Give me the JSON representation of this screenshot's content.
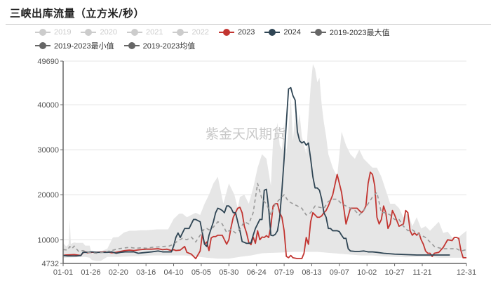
{
  "title": "三峡出库流量（立方米/秒）",
  "watermark": "紫金天风期货",
  "legend": [
    {
      "label": "2019",
      "color": "#cccccc",
      "muted": true
    },
    {
      "label": "2020",
      "color": "#cccccc",
      "muted": true
    },
    {
      "label": "2021",
      "color": "#cccccc",
      "muted": true
    },
    {
      "label": "2022",
      "color": "#cccccc",
      "muted": true
    },
    {
      "label": "2023",
      "color": "#c23531",
      "muted": false
    },
    {
      "label": "2024",
      "color": "#2f4554",
      "muted": false
    },
    {
      "label": "2019-2023最大值",
      "color": "#666666",
      "muted": false
    },
    {
      "label": "2019-2023最小值",
      "color": "#666666",
      "muted": false
    },
    {
      "label": "2019-2023均值",
      "color": "#666666",
      "muted": false
    }
  ],
  "chart_data": {
    "type": "line",
    "title": "三峡出库流量（立方米/秒）",
    "xlabel": "",
    "ylabel": "",
    "ylim": [
      4732,
      49690
    ],
    "y_ticks": [
      4732,
      10000,
      20000,
      30000,
      40000,
      49690
    ],
    "x_ticks": [
      "01-01",
      "01-26",
      "02-20",
      "03-16",
      "04-10",
      "05-05",
      "05-30",
      "06-24",
      "07-19",
      "08-13",
      "09-07",
      "10-02",
      "10-27",
      "11-21",
      "12-31"
    ],
    "x_tick_days": [
      0,
      25,
      50,
      75,
      100,
      125,
      150,
      175,
      200,
      225,
      250,
      275,
      300,
      325,
      365
    ],
    "grid": true,
    "legend_position": "top",
    "series": [
      {
        "name": "2019-2023最大值",
        "style": "band-upper",
        "color": "#e6e6e6",
        "x": [
          0,
          3,
          5,
          6,
          7,
          8,
          10,
          12,
          18,
          20,
          24,
          26,
          30,
          33,
          36,
          40,
          45,
          50,
          55,
          60,
          65,
          70,
          75,
          80,
          85,
          90,
          95,
          100,
          105,
          108,
          112,
          116,
          120,
          124,
          128,
          132,
          136,
          140,
          145,
          150,
          155,
          158,
          160,
          164,
          168,
          172,
          176,
          180,
          184,
          188,
          190,
          192,
          194,
          196,
          198,
          200,
          202,
          204,
          206,
          208,
          210,
          212,
          214,
          216,
          218,
          220,
          222,
          224,
          226,
          228,
          230,
          232,
          234,
          236,
          238,
          240,
          244,
          248,
          252,
          256,
          260,
          264,
          268,
          272,
          276,
          280,
          284,
          288,
          292,
          296,
          300,
          304,
          308,
          312,
          316,
          320,
          324,
          328,
          332,
          336,
          340,
          344,
          348,
          352,
          356,
          360,
          365
        ],
        "values": [
          9200,
          8500,
          9000,
          14500,
          9000,
          9200,
          9400,
          9300,
          9300,
          8700,
          8700,
          6800,
          7200,
          7000,
          7600,
          8000,
          10500,
          10600,
          11600,
          12000,
          12000,
          12100,
          12100,
          12200,
          12300,
          12300,
          12300,
          14600,
          15800,
          15800,
          15000,
          15500,
          16000,
          15500,
          18000,
          20000,
          22500,
          24000,
          18000,
          22500,
          20000,
          17000,
          19500,
          20000,
          18000,
          21500,
          26000,
          29000,
          28000,
          22000,
          32000,
          33000,
          36000,
          31000,
          30000,
          36000,
          29000,
          35000,
          42000,
          32000,
          38000,
          35000,
          38000,
          33000,
          31000,
          29000,
          37000,
          44000,
          49000,
          48000,
          45000,
          46000,
          40000,
          36000,
          33000,
          29000,
          26000,
          24000,
          34000,
          31000,
          29000,
          28000,
          30000,
          28000,
          27000,
          26000,
          26000,
          24000,
          21000,
          18000,
          18000,
          17000,
          15000,
          16000,
          13000,
          15000,
          12500,
          13000,
          12000,
          13000,
          14000,
          11500,
          11800,
          10500,
          10000,
          11000,
          12000
        ]
      },
      {
        "name": "2019-2023最小值",
        "style": "band-lower",
        "color": "#ffffff",
        "x": [
          0,
          10,
          20,
          24,
          26,
          30,
          34,
          40,
          50,
          60,
          70,
          80,
          90,
          100,
          110,
          120,
          130,
          140,
          150,
          160,
          170,
          180,
          190,
          200,
          210,
          220,
          230,
          240,
          250,
          260,
          270,
          280,
          290,
          300,
          310,
          320,
          330,
          340,
          350,
          360,
          365
        ],
        "values": [
          6000,
          6100,
          6200,
          6000,
          5500,
          5300,
          5300,
          6200,
          6200,
          6300,
          6400,
          6500,
          6500,
          6500,
          6500,
          6300,
          6000,
          5800,
          5800,
          6200,
          6500,
          7000,
          7100,
          7200,
          7300,
          7300,
          7300,
          7100,
          6900,
          6700,
          6500,
          6500,
          6300,
          6200,
          6100,
          6200,
          6200,
          6000,
          6000,
          6000,
          6200
        ]
      },
      {
        "name": "2023",
        "color": "#c23531",
        "x": [
          0,
          2,
          10,
          16,
          18,
          20,
          22,
          26,
          30,
          36,
          40,
          44,
          48,
          52,
          56,
          60,
          64,
          70,
          75,
          80,
          86,
          90,
          94,
          98,
          100,
          102,
          106,
          110,
          112,
          116,
          120,
          124,
          126,
          128,
          130,
          132,
          134,
          136,
          138,
          140,
          144,
          148,
          150,
          152,
          154,
          156,
          158,
          160,
          162,
          164,
          166,
          168,
          170,
          172,
          174,
          176,
          178,
          180,
          182,
          184,
          186,
          188,
          190,
          192,
          194,
          196,
          198,
          200,
          202,
          204,
          206,
          208,
          212,
          216,
          218,
          220,
          222,
          224,
          226,
          228,
          230,
          232,
          234,
          236,
          238,
          240,
          244,
          248,
          252,
          256,
          260,
          264,
          266,
          268,
          270,
          272,
          274,
          276,
          278,
          280,
          282,
          284,
          286,
          288,
          290,
          292,
          294,
          296,
          298,
          300,
          304,
          308,
          310,
          312,
          314,
          316,
          318,
          320,
          322,
          324,
          326,
          328,
          330,
          332,
          334,
          336,
          340,
          344,
          348,
          352,
          354,
          356,
          358,
          360,
          362,
          365
        ],
        "values": [
          6500,
          6600,
          6700,
          6500,
          7100,
          7300,
          7100,
          7200,
          7200,
          7300,
          7300,
          7100,
          7200,
          7400,
          7600,
          7700,
          7600,
          7800,
          7900,
          7900,
          8000,
          7800,
          7900,
          7600,
          7800,
          7600,
          7700,
          8500,
          7200,
          6800,
          5800,
          7500,
          11200,
          9000,
          9500,
          7600,
          10400,
          10700,
          10700,
          11000,
          11000,
          9000,
          10000,
          12800,
          15000,
          16000,
          17000,
          17200,
          16000,
          13000,
          11500,
          9400,
          8900,
          10600,
          9200,
          12000,
          10000,
          10600,
          10500,
          10900,
          10500,
          13000,
          17500,
          18000,
          18000,
          16000,
          15000,
          12000,
          6300,
          6000,
          6500,
          6000,
          5800,
          5800,
          7000,
          10500,
          9000,
          14000,
          16000,
          15500,
          15000,
          15000,
          15300,
          16000,
          16500,
          17500,
          20000,
          24500,
          20500,
          13500,
          17000,
          17000,
          17000,
          16500,
          16000,
          16500,
          17500,
          22500,
          25000,
          24500,
          22000,
          15000,
          13500,
          14500,
          17500,
          16000,
          12500,
          13500,
          16500,
          15500,
          13000,
          13500,
          16500,
          16000,
          12000,
          11000,
          11500,
          11000,
          11500,
          10000,
          9000,
          7500,
          7000,
          7000,
          6300,
          7000,
          7200,
          8300,
          10000,
          9800,
          10500,
          10500,
          10300,
          7600,
          6000,
          6000
        ]
      },
      {
        "name": "2024",
        "color": "#2f4554",
        "x": [
          0,
          4,
          12,
          16,
          18,
          22,
          26,
          30,
          36,
          40,
          44,
          48,
          52,
          56,
          60,
          64,
          68,
          72,
          76,
          80,
          86,
          90,
          94,
          98,
          100,
          102,
          104,
          106,
          110,
          114,
          116,
          118,
          120,
          124,
          128,
          130,
          132,
          134,
          136,
          138,
          140,
          142,
          144,
          146,
          148,
          150,
          152,
          154,
          156,
          158,
          160,
          162,
          164,
          166,
          168,
          170,
          172,
          174,
          176,
          178,
          180,
          182,
          184,
          186,
          188,
          190,
          192,
          194,
          196,
          198,
          200,
          202,
          204,
          206,
          208,
          210,
          212,
          214,
          216,
          218,
          220,
          222,
          224,
          226,
          228,
          230,
          232,
          234,
          236,
          238,
          240,
          242,
          244,
          246,
          248,
          250,
          252,
          254,
          256,
          258,
          260,
          264,
          268,
          272,
          276,
          280,
          284,
          290,
          300,
          310,
          320,
          330,
          340,
          350
        ],
        "values": [
          6500,
          6400,
          6400,
          6500,
          7200,
          7200,
          7300,
          7200,
          7200,
          7200,
          7300,
          7000,
          7200,
          7300,
          7300,
          7300,
          7000,
          7100,
          7200,
          7300,
          7500,
          7300,
          7300,
          7300,
          8600,
          10500,
          11500,
          10500,
          12500,
          12500,
          13500,
          14500,
          14500,
          14000,
          9000,
          8500,
          11000,
          12500,
          14000,
          16000,
          17000,
          16800,
          16500,
          16000,
          17500,
          17500,
          17000,
          16000,
          16000,
          14000,
          12000,
          9600,
          9400,
          9200,
          9200,
          9300,
          11000,
          12500,
          13500,
          14500,
          14500,
          21000,
          21200,
          17000,
          11000,
          10900,
          11200,
          12000,
          15000,
          21000,
          28000,
          36000,
          43500,
          43800,
          42000,
          41000,
          34000,
          32000,
          31500,
          31800,
          31000,
          31500,
          28000,
          24000,
          21500,
          21500,
          21000,
          19000,
          16000,
          15000,
          12500,
          12500,
          12000,
          12000,
          12000,
          11800,
          11000,
          10300,
          10300,
          8000,
          7500,
          7400,
          7400,
          7500,
          7300,
          7300,
          7200,
          7000,
          6800,
          6700,
          6600,
          6600,
          6600,
          6600
        ]
      },
      {
        "name": "2019-2023均值",
        "color": "#999999",
        "dashed": true,
        "x": [
          0,
          4,
          6,
          8,
          10,
          14,
          18,
          22,
          26,
          30,
          36,
          40,
          44,
          50,
          56,
          60,
          66,
          70,
          76,
          80,
          86,
          90,
          96,
          100,
          104,
          108,
          112,
          116,
          120,
          124,
          128,
          130,
          132,
          136,
          140,
          144,
          148,
          152,
          156,
          160,
          164,
          168,
          172,
          176,
          180,
          184,
          188,
          192,
          196,
          200,
          204,
          208,
          212,
          216,
          220,
          224,
          228,
          232,
          236,
          240,
          244,
          248,
          252,
          256,
          260,
          264,
          268,
          272,
          276,
          280,
          284,
          288,
          292,
          296,
          300,
          304,
          308,
          312,
          316,
          320,
          324,
          328,
          332,
          336,
          340,
          344,
          348,
          352,
          356,
          360,
          365
        ],
        "values": [
          7800,
          7700,
          8500,
          8000,
          8600,
          7400,
          7600,
          7200,
          7100,
          7000,
          7200,
          7400,
          7600,
          8000,
          8200,
          8300,
          8100,
          8200,
          8100,
          8300,
          8400,
          8500,
          8600,
          9000,
          9800,
          10300,
          10000,
          10600,
          9500,
          11000,
          12500,
          12500,
          12200,
          12800,
          14000,
          13500,
          11600,
          12300,
          11500,
          12400,
          14000,
          13500,
          16000,
          22500,
          19000,
          18000,
          15500,
          18000,
          19000,
          20000,
          18500,
          18000,
          17500,
          17000,
          15500,
          16000,
          17500,
          17200,
          17000,
          18500,
          19000,
          19000,
          18000,
          17500,
          17000,
          16500,
          15500,
          16500,
          18000,
          19500,
          20500,
          16000,
          16000,
          15500,
          14500,
          14500,
          13000,
          12000,
          12200,
          11500,
          11000,
          10500,
          9500,
          8500,
          8200,
          8000,
          8000,
          8000,
          8000,
          7500,
          7800
        ]
      }
    ]
  }
}
